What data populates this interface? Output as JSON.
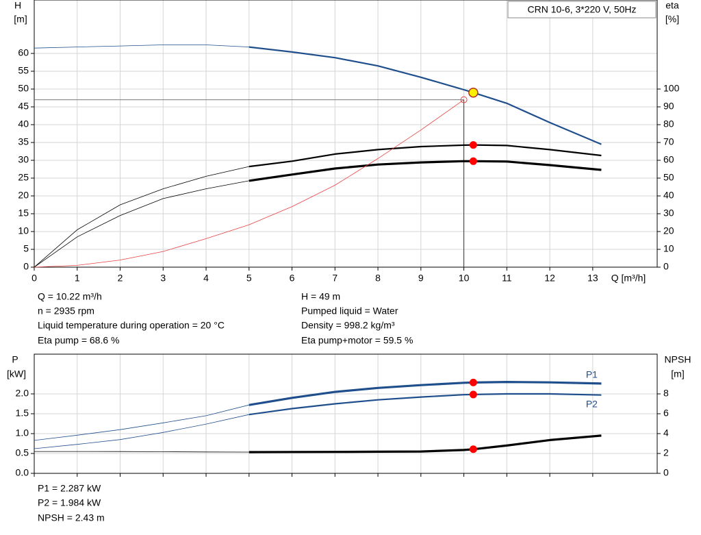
{
  "chart_data": [
    {
      "type": "line",
      "title": "CRN 10-6, 3*220 V, 50Hz",
      "y_label": "H",
      "y_unit": "[m]",
      "y2_label": "eta",
      "y2_unit": "[%]",
      "x_label": "Q [m³/h]",
      "x": [
        0,
        1,
        2,
        3,
        4,
        5,
        6,
        7,
        8,
        9,
        10,
        10.22,
        11,
        12,
        13.2
      ],
      "xlim": [
        0,
        14.5
      ],
      "xticks": [
        0,
        1,
        2,
        3,
        4,
        5,
        6,
        7,
        8,
        9,
        10,
        11,
        12,
        13
      ],
      "ylim": [
        0,
        75
      ],
      "yticks": [
        0,
        5,
        10,
        15,
        20,
        25,
        30,
        35,
        40,
        45,
        50,
        55,
        60
      ],
      "y2lim": [
        0,
        150
      ],
      "y2ticks": [
        0,
        10,
        20,
        30,
        40,
        50,
        60,
        70,
        80,
        90,
        100
      ],
      "grid": true,
      "thick_from": 5,
      "operating_x": 10.22,
      "cursor": {
        "x": 10,
        "y": 47
      },
      "series": [
        {
          "color": "#1f4e8c",
          "style": "duty",
          "marker_color": "#ffee00",
          "values": [
            61.5,
            61.8,
            62.1,
            62.4,
            62.4,
            61.8,
            60.4,
            58.8,
            56.5,
            53.3,
            49.8,
            49,
            46,
            40.6,
            34.5
          ]
        },
        {
          "color": "#000000",
          "style": "duty",
          "axis": "y2",
          "marker_color": "#ff0000",
          "values": [
            0,
            21,
            35,
            44,
            51,
            56.5,
            59.5,
            63.5,
            66,
            67.7,
            68.5,
            68.6,
            68.3,
            66,
            62.7
          ]
        },
        {
          "color": "#000000",
          "style": "duty-bold",
          "axis": "y2",
          "marker_color": "#ff0000",
          "values": [
            0,
            17,
            29,
            38.5,
            44,
            48.5,
            52,
            55.4,
            57.6,
            58.8,
            59.5,
            59.5,
            59.3,
            57.3,
            54.6
          ]
        },
        {
          "color": "#e84040",
          "style": "thin",
          "values": [
            0,
            0.5,
            2,
            4.4,
            8,
            11.9,
            17,
            23,
            30.5,
            38.5,
            47,
            null,
            null,
            null,
            null
          ]
        }
      ]
    },
    {
      "type": "line",
      "y_label": "P",
      "y_unit": "[kW]",
      "y2_label": "NPSH",
      "y2_unit": "[m]",
      "x": [
        0,
        1,
        2,
        3,
        4,
        5,
        6,
        7,
        8,
        9,
        10,
        10.22,
        11,
        12,
        13.2
      ],
      "xlim": [
        0,
        14.5
      ],
      "xticks": [
        0,
        1,
        2,
        3,
        4,
        5,
        6,
        7,
        8,
        9,
        10,
        11,
        12,
        13
      ],
      "ylim": [
        0,
        3
      ],
      "yticks": [
        {
          "value": 0,
          "label": "0.0"
        },
        {
          "value": 0.5,
          "label": "0.5"
        },
        {
          "value": 1,
          "label": "1.0"
        },
        {
          "value": 1.5,
          "label": "1.5"
        },
        {
          "value": 2,
          "label": "2.0"
        }
      ],
      "y2lim": [
        0,
        12
      ],
      "y2ticks": [
        0,
        2,
        4,
        6,
        8
      ],
      "grid": true,
      "thick_from": 5,
      "operating_x": 10.22,
      "series": [
        {
          "name": "P1",
          "color": "#1f4e8c",
          "style": "duty-bold",
          "marker_color": "#ff0000",
          "values": [
            0.83,
            0.96,
            1.1,
            1.27,
            1.45,
            1.72,
            1.9,
            2.05,
            2.15,
            2.22,
            2.28,
            2.287,
            2.3,
            2.29,
            2.26
          ]
        },
        {
          "name": "P2",
          "color": "#1f4e8c",
          "style": "duty",
          "marker_color": "#ff0000",
          "values": [
            0.62,
            0.73,
            0.85,
            1.03,
            1.24,
            1.48,
            1.63,
            1.75,
            1.85,
            1.92,
            1.98,
            1.984,
            2.0,
            2.0,
            1.97
          ]
        },
        {
          "color": "#000000",
          "style": "duty-bold",
          "axis": "y2",
          "marker_color": "#ff0000",
          "values": [
            2.2,
            2.2,
            2.19,
            2.17,
            2.15,
            2.14,
            2.15,
            2.16,
            2.18,
            2.2,
            2.35,
            2.43,
            2.8,
            3.35,
            3.8
          ]
        }
      ]
    }
  ],
  "operating_info": {
    "left": [
      "Q = 10.22 m³/h",
      "n = 2935 rpm",
      "Liquid temperature during operation = 20 °C",
      "Eta pump = 68.6 %"
    ],
    "right": [
      "H = 49 m",
      "Pumped liquid = Water",
      "Density = 998.2 kg/m³",
      "Eta pump+motor = 59.5 %"
    ]
  },
  "power_info": [
    "P1 = 2.287 kW",
    "P2 = 1.984 kW",
    "NPSH = 2.43 m"
  ]
}
